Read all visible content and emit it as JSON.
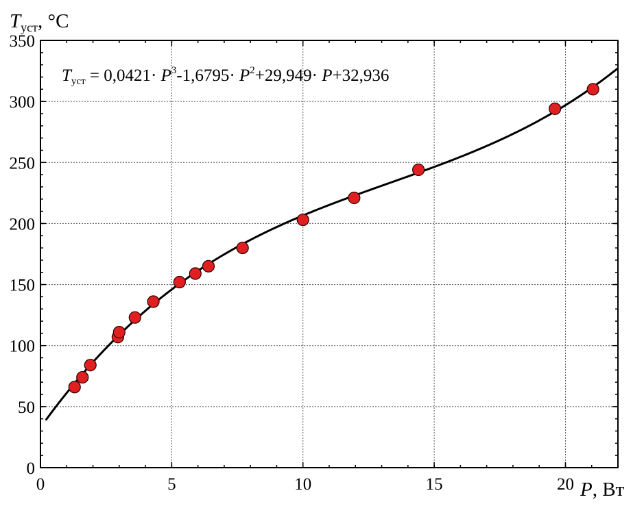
{
  "chart_data": {
    "type": "scatter",
    "ylabel_symbol": "T",
    "ylabel_subscript": "уст",
    "ylabel_unit": ", °С",
    "xlabel_symbol": "P",
    "xlabel_unit": ", Вт",
    "xlim": [
      0,
      22
    ],
    "ylim": [
      0,
      350
    ],
    "x_ticks": [
      0,
      5,
      10,
      15,
      20
    ],
    "y_ticks": [
      0,
      50,
      100,
      150,
      200,
      250,
      300,
      350
    ],
    "grid": true,
    "equation": {
      "lhs_symbol": "T",
      "lhs_subscript": "уст",
      "rhs_part1": " = 0,0421· ",
      "p_symbol": "P",
      "exp3": "3",
      "rhs_part2": "-1,6795· ",
      "exp2": "2",
      "rhs_part3": "+29,949· ",
      "rhs_part4": "+32,936",
      "coefficients": [
        0.0421,
        -1.6795,
        29.949,
        32.936
      ]
    },
    "fit_x_range": [
      0.2,
      22
    ],
    "marker_color": "#e02020",
    "curve_color": "#000000",
    "series": [
      {
        "points": [
          {
            "x": 1.3,
            "y": 66
          },
          {
            "x": 1.6,
            "y": 74
          },
          {
            "x": 1.9,
            "y": 84
          },
          {
            "x": 2.95,
            "y": 107
          },
          {
            "x": 3.0,
            "y": 111
          },
          {
            "x": 3.6,
            "y": 123
          },
          {
            "x": 4.3,
            "y": 136
          },
          {
            "x": 5.3,
            "y": 152
          },
          {
            "x": 5.9,
            "y": 159
          },
          {
            "x": 6.4,
            "y": 165
          },
          {
            "x": 7.7,
            "y": 180
          },
          {
            "x": 10.0,
            "y": 203
          },
          {
            "x": 11.95,
            "y": 221
          },
          {
            "x": 14.4,
            "y": 244
          },
          {
            "x": 19.6,
            "y": 294
          },
          {
            "x": 21.05,
            "y": 310
          }
        ]
      }
    ]
  }
}
